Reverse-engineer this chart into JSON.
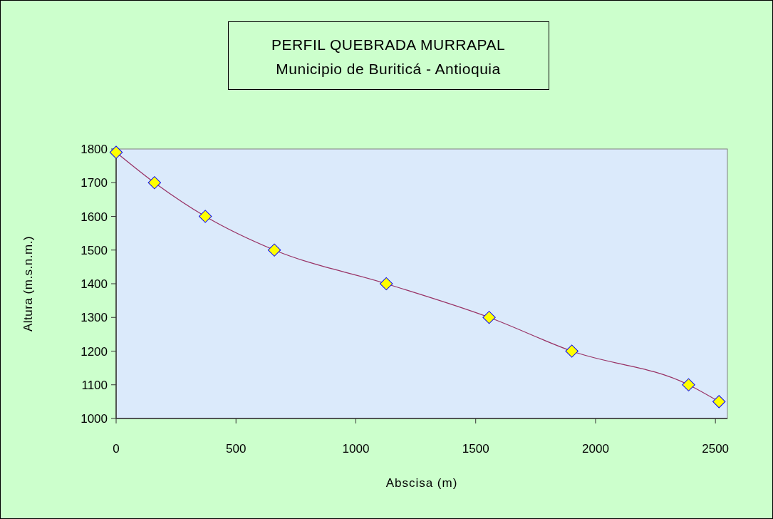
{
  "chart_data": {
    "type": "line",
    "title": "PERFIL QUEBRADA MURRAPAL",
    "subtitle": "Municipio de Buriticá - Antioquia",
    "xlabel": "Abscisa (m)",
    "ylabel": "Altura (m.s.n.m.)",
    "x": [
      0,
      160,
      372,
      660,
      1127,
      1556,
      1901,
      2388,
      2515
    ],
    "series": [
      {
        "color": "#993366",
        "values": [
          1790,
          1700,
          1600,
          1500,
          1400,
          1300,
          1200,
          1100,
          1050
        ]
      }
    ],
    "xlim": [
      0,
      2550
    ],
    "xticks": [
      0,
      500,
      1000,
      1500,
      2000,
      2500
    ],
    "ylim": [
      1000,
      1800
    ],
    "yticks": [
      1000,
      1100,
      1200,
      1300,
      1400,
      1500,
      1600,
      1700,
      1800
    ],
    "marker": "diamond",
    "grid": false
  }
}
